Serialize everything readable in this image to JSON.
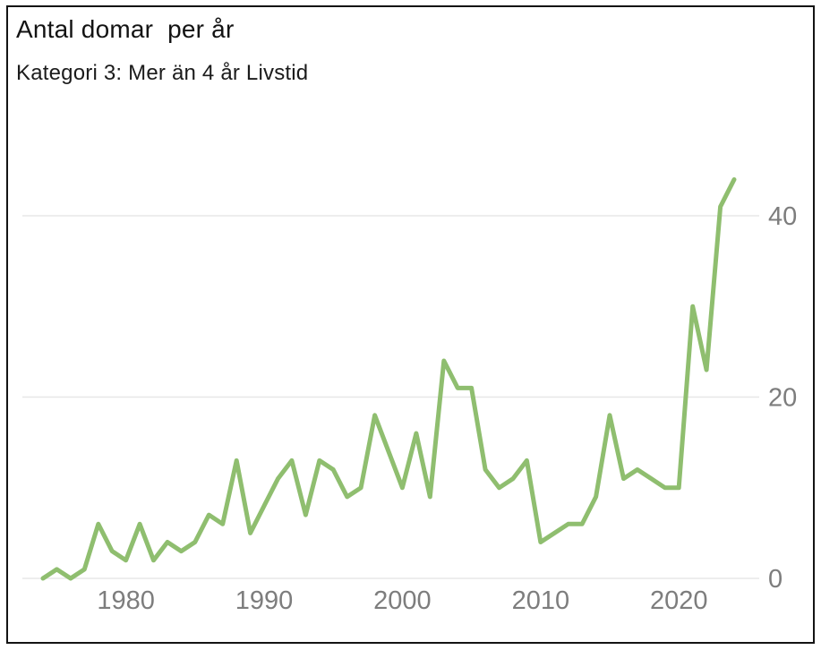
{
  "window": {
    "background": "#ffffff",
    "frame_border_color": "#141414"
  },
  "header": {
    "title": "Antal domar  per år",
    "subtitle": "Kategori 3: Mer än 4 år Livstid"
  },
  "chart_data": {
    "type": "line",
    "title": "Antal domar  per år",
    "subtitle": "Kategori 3: Mer än 4 år Livstid",
    "series": [
      {
        "name": "Kategori 3: Mer än 4 år Livstid",
        "color": "#8FBE6F",
        "values": [
          0,
          1,
          0,
          1,
          6,
          3,
          2,
          6,
          2,
          4,
          3,
          4,
          7,
          6,
          13,
          5,
          8,
          11,
          13,
          7,
          13,
          12,
          9,
          10,
          18,
          14,
          10,
          16,
          9,
          24,
          21,
          21,
          12,
          10,
          11,
          13,
          4,
          5,
          6,
          6,
          9,
          18,
          11,
          12,
          11,
          10,
          10,
          30,
          23,
          41,
          44
        ]
      }
    ],
    "x": [
      1974,
      1975,
      1976,
      1977,
      1978,
      1979,
      1980,
      1981,
      1982,
      1983,
      1984,
      1985,
      1986,
      1987,
      1988,
      1989,
      1990,
      1991,
      1992,
      1993,
      1994,
      1995,
      1996,
      1997,
      1998,
      1999,
      2000,
      2001,
      2002,
      2003,
      2004,
      2005,
      2006,
      2007,
      2008,
      2009,
      2010,
      2011,
      2012,
      2013,
      2014,
      2015,
      2016,
      2017,
      2018,
      2019,
      2020,
      2021,
      2022,
      2023,
      2024
    ],
    "xlim": [
      1974,
      2024
    ],
    "ylim": [
      0,
      45.5
    ],
    "x_ticks": [
      1980,
      1990,
      2000,
      2010,
      2020
    ],
    "y_ticks": [
      0,
      20,
      40
    ],
    "xlabel": "",
    "ylabel": "",
    "grid": "horizontal-only",
    "legend_position": "none",
    "y_axis_side": "right",
    "gridline_color": "#e7e7e7",
    "axis_label_color": "#7d7d7d"
  }
}
